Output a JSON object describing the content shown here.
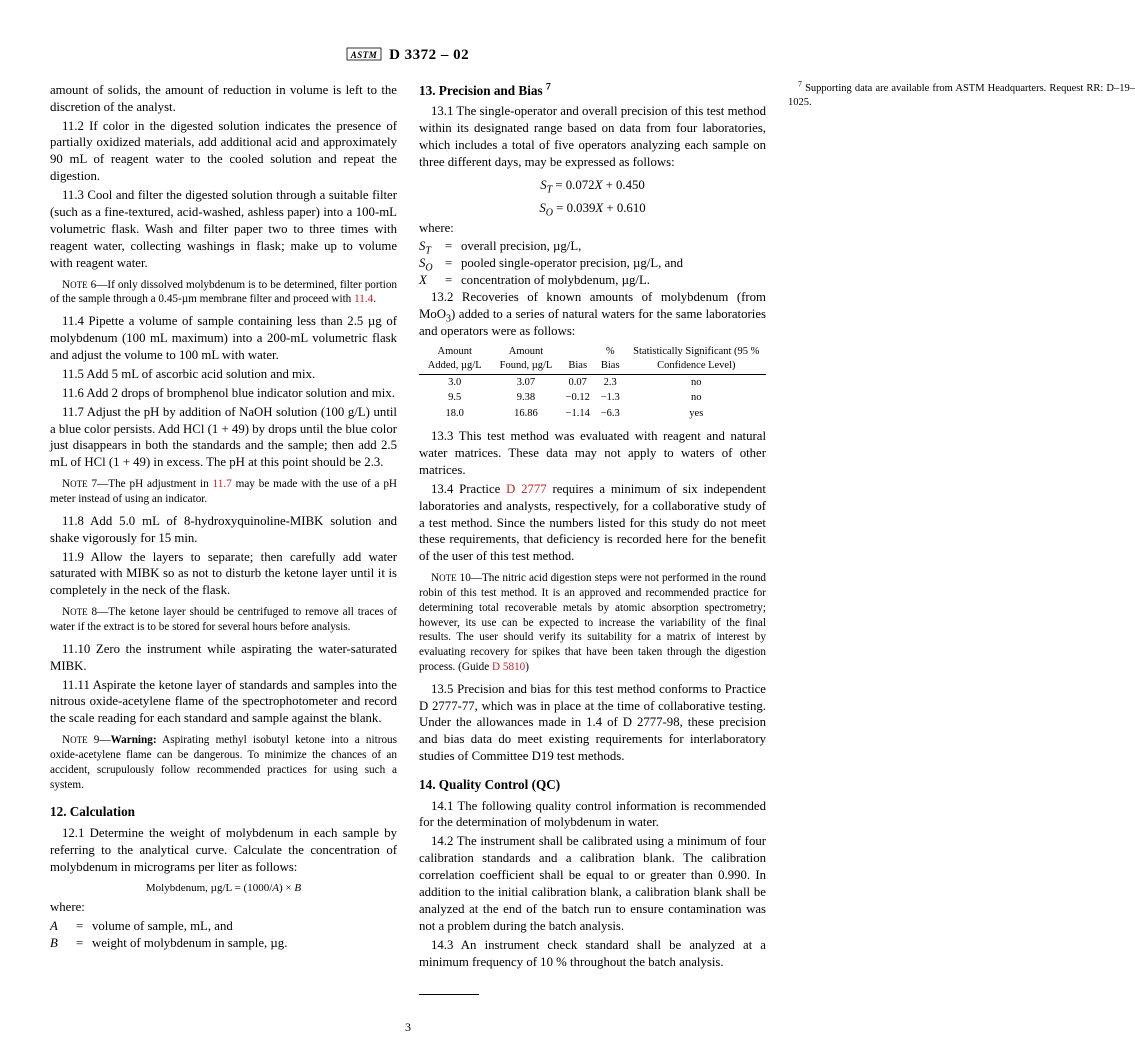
{
  "header": {
    "designation": "D 3372 – 02"
  },
  "col1": {
    "cont1": "amount of solids, the amount of reduction in volume is left to the discretion of the analyst.",
    "p11_2": "11.2 If color in the digested solution indicates the presence of partially oxidized materials, add additional acid and approximately 90 mL of reagent water to the cooled solution and repeat the digestion.",
    "p11_3": "11.3 Cool and filter the digested solution through a suitable filter (such as a fine-textured, acid-washed, ashless paper) into a 100-mL volumetric flask. Wash and filter paper two to three times with reagent water, collecting washings in flask; make up to volume with reagent water.",
    "note6a": "6—If only dissolved molybdenum is to be determined, filter portion of the sample through a 0.45-µm membrane filter and proceed with ",
    "note6link": "11.4",
    "p11_4": "11.4 Pipette a volume of sample containing less than 2.5 µg of molybdenum (100 mL maximum) into a 200-mL volumetric flask and adjust the volume to 100 mL with water.",
    "p11_5": "11.5 Add 5 mL of ascorbic acid solution and mix.",
    "p11_6": "11.6 Add 2 drops of bromphenol blue indicator solution and mix.",
    "p11_7": "11.7 Adjust the pH by addition of NaOH solution (100 g/L) until a blue color persists. Add HCl (1 + 49) by drops until the blue color just disappears in both the standards and the sample; then add 2.5 mL of HCl (1 + 49) in excess. The pH at this point should be 2.3.",
    "note7a": "7—The pH adjustment in ",
    "note7link": "11.7",
    "note7b": " may be made with the use of a pH meter instead of using an indicator.",
    "p11_8": "11.8 Add 5.0 mL of 8-hydroxyquinoline-MIBK solution and shake vigorously for 15 min.",
    "p11_9": "11.9 Allow the layers to separate; then carefully add water saturated with MIBK so as not to disturb the ketone layer until it is completely in the neck of the flask.",
    "note8": "8—The ketone layer should be centrifuged to remove all traces of water if the extract is to be stored for several hours before analysis.",
    "p11_10": "11.10 Zero the instrument while aspirating the water-saturated MIBK.",
    "p11_11": "11.11 Aspirate the ketone layer of standards and samples into the nitrous oxide-acetylene flame of the spectrophotometer and record the scale reading for each standard and sample against the blank.",
    "note9a": "Warning:",
    "note9b": " Aspirating methyl isobutyl ketone into a nitrous oxide-acetylene flame can be dangerous. To minimize the chances of an accident, scrupulously follow recommended practices for using such a system.",
    "h12": "12. Calculation",
    "p12_1": "12.1 Determine the weight of molybdenum in each sample by referring to the analytical curve. Calculate the concentration of molybdenum in micrograms per liter as follows:",
    "eq12": "Molybdenum, µg/L = (1000/",
    "eq12b": ") × ",
    "where": "where:",
    "whereA": "volume of sample, mL, and",
    "whereB": "weight of molybdenum in sample, µg."
  },
  "col2": {
    "h13": "13. Precision and Bias ",
    "h13sup": "7",
    "p13_1": "13.1 The single-operator and overall precision of this test method within its designated range based on data from four laboratories, which includes a total of five operators analyzing each sample on three different days, may be expressed as follows:",
    "eqST": " = 0.072",
    "eqST2": " + 0.450",
    "eqSO": " = 0.039",
    "eqSO2": " + 0.610",
    "where": "where:",
    "whereST": "overall precision, µg/L,",
    "whereSO": "pooled single-operator precision, µg/L, and",
    "whereX": "concentration of molybdenum, µg/L.",
    "p13_2a": "13.2 Recoveries of known amounts of molybdenum (from MoO",
    "p13_2sub": "3",
    "p13_2b": ") added to a series of natural waters for the same laboratories and operators were as follows:",
    "table": {
      "headers": [
        "Amount Added, µg/L",
        "Amount Found, µg/L",
        "Bias",
        "% Bias",
        "Statistically Significant (95 % Confidence Level)"
      ],
      "rows": [
        [
          "3.0",
          "3.07",
          "0.07",
          "2.3",
          "no"
        ],
        [
          "9.5",
          "9.38",
          "−0.12",
          "−1.3",
          "no"
        ],
        [
          "18.0",
          "16.86",
          "−1.14",
          "−6.3",
          "yes"
        ]
      ]
    },
    "p13_3": "13.3 This test method was evaluated with reagent and natural water matrices. These data may not apply to waters of other matrices.",
    "p13_4a": "13.4 Practice ",
    "p13_4link": "D 2777",
    "p13_4b": " requires a minimum of six independent laboratories and analysts, respectively, for a collaborative study of a test method. Since the numbers listed for this study do not meet these requirements, that deficiency is recorded here for the benefit of the user of this test method.",
    "note10a": "10—The nitric acid digestion steps were not performed in the round robin of this test method. It is an approved and recommended practice for determining total recoverable metals by atomic absorption spectrometry; however, its use can be expected to increase the variability of the final results. The user should verify its suitability for a matrix of interest by evaluating recovery for spikes that have been taken through the digestion process. (Guide ",
    "note10link": "D 5810",
    "note10b": ")",
    "p13_5": "13.5 Precision and bias for this test method conforms to Practice D 2777-77, which was in place at the time of collaborative testing. Under the allowances made in 1.4 of D 2777-98, these precision and bias data do meet existing requirements for interlaboratory studies of Committee D19 test methods.",
    "h14": "14. Quality Control (QC)",
    "p14_1": "14.1 The following quality control information is recommended for the determination of molybdenum in water.",
    "p14_2": "14.2 The instrument shall be calibrated using a minimum of four calibration standards and a calibration blank. The calibration correlation coefficient shall be equal to or greater than 0.990. In addition to the initial calibration blank, a calibration blank shall be analyzed at the end of the batch run to ensure contamination was not a problem during the batch analysis.",
    "p14_3": "14.3 An instrument check standard shall be analyzed at a minimum frequency of 10 % throughout the batch analysis.",
    "footnote7a": "Supporting data are available from ASTM Headquarters. Request RR: D–19–1025."
  },
  "pagenum": "3"
}
